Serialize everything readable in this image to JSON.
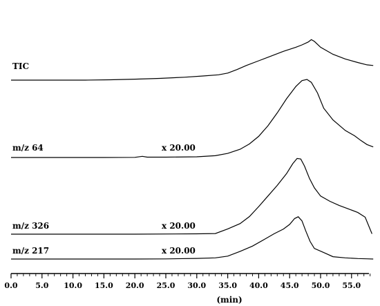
{
  "chart_data": {
    "type": "line",
    "xlabel": "(min)",
    "xlim": [
      0,
      58.5
    ],
    "xticks": [
      "0.0",
      "5.0",
      "10.0",
      "15.0",
      "20.0",
      "25.0",
      "30.0",
      "35.0",
      "40.0",
      "45.0",
      "50.0",
      "55.0"
    ],
    "series": [
      {
        "name": "TIC",
        "scale_label": "",
        "x": [
          0,
          6,
          12,
          16,
          20,
          24,
          28,
          31,
          33.5,
          35,
          36.5,
          38,
          40,
          42,
          44,
          46,
          47,
          48,
          48.5,
          49,
          50,
          52,
          54,
          56,
          57.5,
          58.5
        ],
        "y": [
          0,
          0,
          0,
          0.3,
          0.8,
          1.5,
          2.5,
          3.5,
          4.5,
          6.0,
          9.0,
          12.5,
          16.5,
          20.5,
          24.5,
          28.0,
          30.0,
          32.5,
          34.5,
          33.0,
          28.0,
          22.0,
          18.0,
          15.0,
          13.0,
          12.5
        ]
      },
      {
        "name": "m/z 64",
        "scale_label": "x 20.00",
        "x": [
          0,
          5,
          10,
          15,
          20,
          20.5,
          21.2,
          22,
          25,
          30,
          33,
          35,
          37,
          38.5,
          40,
          41.5,
          43,
          44.5,
          46,
          47,
          47.8,
          48.5,
          49.5,
          50.5,
          52,
          54,
          55.5,
          56.5,
          57.5,
          58.5
        ],
        "y": [
          0,
          0,
          0,
          0,
          0.1,
          0.5,
          1.0,
          0.3,
          0.3,
          0.6,
          1.5,
          3.5,
          7.0,
          11.5,
          18.0,
          27.0,
          38.0,
          50.0,
          60.5,
          65.5,
          66.5,
          64.0,
          55.0,
          42.0,
          32.0,
          23.0,
          18.5,
          14.5,
          11.0,
          9.0
        ]
      },
      {
        "name": "m/z 326",
        "scale_label": "x 20.00",
        "x": [
          0,
          10,
          20,
          30,
          33,
          35,
          37,
          38.5,
          40,
          41.5,
          43,
          44.5,
          45.5,
          46.2,
          46.8,
          47.4,
          48.2,
          49,
          50,
          51.5,
          53,
          54.5,
          56,
          57.2,
          58.3
        ],
        "y": [
          0,
          0,
          0,
          0.3,
          0.5,
          4.5,
          9.0,
          15.0,
          23.5,
          32.5,
          41.5,
          51.5,
          60.0,
          64.5,
          64.0,
          58.0,
          47.5,
          39.5,
          32.5,
          28.0,
          24.5,
          21.5,
          18.5,
          14.5,
          0.3
        ]
      },
      {
        "name": "m/z 217",
        "scale_label": "x 20.00",
        "x": [
          0,
          10,
          20,
          25,
          30,
          33,
          35,
          37,
          39,
          41,
          42.5,
          44,
          45,
          45.8,
          46.4,
          47,
          47.6,
          48.3,
          49,
          50.5,
          52,
          54,
          56,
          57.5,
          58.5
        ],
        "y": [
          0,
          0,
          0,
          0.1,
          0.5,
          1.0,
          2.5,
          6.5,
          11.0,
          17.0,
          21.5,
          25.5,
          29.5,
          34.5,
          36.0,
          32.5,
          24.0,
          15.0,
          9.0,
          5.5,
          2.0,
          1.0,
          0.4,
          0.2,
          0.0
        ]
      }
    ],
    "grid": false,
    "legend": "none"
  }
}
